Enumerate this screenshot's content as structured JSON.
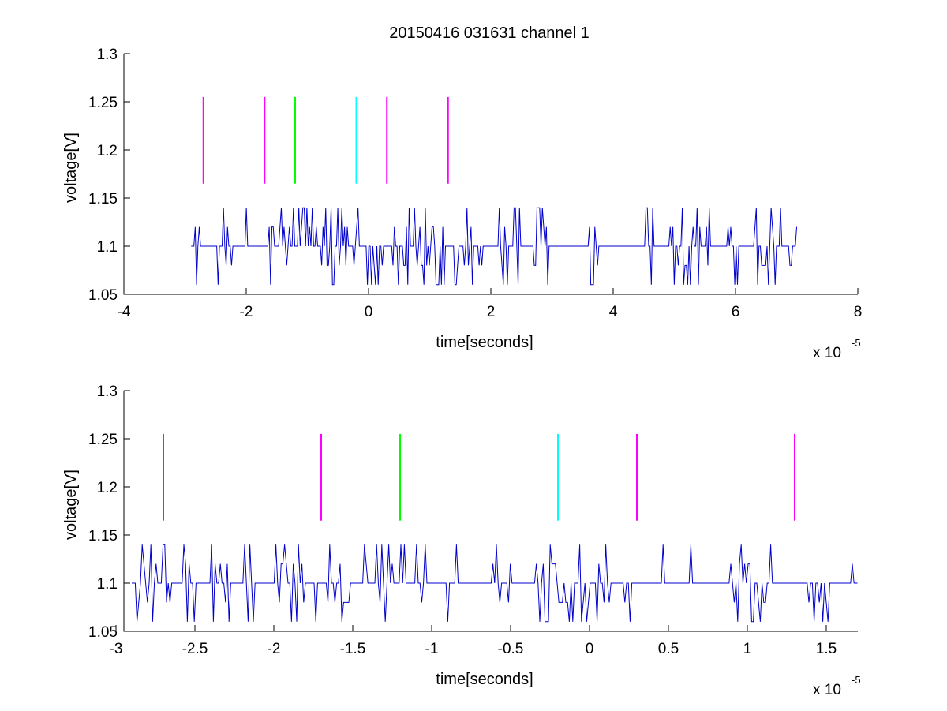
{
  "chart_data": [
    {
      "type": "line",
      "title": "20150416 031631 channel 1",
      "xlabel": "time[seconds]",
      "ylabel": "voltage[V]",
      "x_multiplier": "x 10",
      "x_multiplier_exp": "-5",
      "xlim": [
        -4,
        8
      ],
      "ylim": [
        1.05,
        1.3
      ],
      "x_ticks": [
        -4,
        -2,
        0,
        2,
        4,
        6,
        8
      ],
      "x_tick_labels": [
        "-4",
        "-2",
        "0",
        "2",
        "4",
        "6",
        "8"
      ],
      "y_ticks": [
        1.05,
        1.1,
        1.15,
        1.2,
        1.25,
        1.3
      ],
      "y_tick_labels": [
        "1.05",
        "1.1",
        "1.15",
        "1.2",
        "1.25",
        "1.3"
      ],
      "grid": false,
      "series": [
        {
          "color": "#0000cc",
          "x_range": [
            -2.9,
            7.0
          ],
          "baseline": 1.1,
          "levels": [
            1.06,
            1.08,
            1.1,
            1.12,
            1.14
          ],
          "description_note": "noisy step signal between 1.06 and 1.14"
        }
      ],
      "markers": [
        {
          "x": -2.7,
          "y_range": [
            1.165,
            1.255
          ],
          "color": "#ff00ff"
        },
        {
          "x": -1.7,
          "y_range": [
            1.165,
            1.255
          ],
          "color": "#ff00ff"
        },
        {
          "x": -1.2,
          "y_range": [
            1.165,
            1.255
          ],
          "color": "#00ff00"
        },
        {
          "x": -0.2,
          "y_range": [
            1.165,
            1.255
          ],
          "color": "#00ffff"
        },
        {
          "x": 0.3,
          "y_range": [
            1.165,
            1.255
          ],
          "color": "#ff00ff"
        },
        {
          "x": 1.3,
          "y_range": [
            1.165,
            1.255
          ],
          "color": "#ff00ff"
        }
      ]
    },
    {
      "type": "line",
      "title": "",
      "xlabel": "time[seconds]",
      "ylabel": "voltage[V]",
      "x_multiplier": "x 10",
      "x_multiplier_exp": "-5",
      "xlim": [
        -2.95,
        1.7
      ],
      "ylim": [
        1.05,
        1.3
      ],
      "x_ticks": [
        -3,
        -2.5,
        -2,
        -1.5,
        -1,
        -0.5,
        0,
        0.5,
        1,
        1.5
      ],
      "x_tick_labels": [
        "-3",
        "-2.5",
        "-2",
        "-1.5",
        "-1",
        "-0.5",
        "0",
        "0.5",
        "1",
        "1.5"
      ],
      "y_ticks": [
        1.05,
        1.1,
        1.15,
        1.2,
        1.25,
        1.3
      ],
      "y_tick_labels": [
        "1.05",
        "1.1",
        "1.15",
        "1.2",
        "1.25",
        "1.3"
      ],
      "grid": false,
      "series": [
        {
          "color": "#0000cc",
          "x_range": [
            -2.9,
            1.7
          ],
          "baseline": 1.1,
          "levels": [
            1.06,
            1.08,
            1.1,
            1.12,
            1.14
          ]
        }
      ],
      "markers": [
        {
          "x": -2.7,
          "y_range": [
            1.165,
            1.255
          ],
          "color": "#ff00ff"
        },
        {
          "x": -1.7,
          "y_range": [
            1.165,
            1.255
          ],
          "color": "#ff00ff"
        },
        {
          "x": -1.2,
          "y_range": [
            1.165,
            1.255
          ],
          "color": "#00ff00"
        },
        {
          "x": -0.2,
          "y_range": [
            1.165,
            1.255
          ],
          "color": "#00ffff"
        },
        {
          "x": 0.3,
          "y_range": [
            1.165,
            1.255
          ],
          "color": "#ff00ff"
        },
        {
          "x": 1.3,
          "y_range": [
            1.165,
            1.255
          ],
          "color": "#ff00ff"
        }
      ]
    }
  ]
}
